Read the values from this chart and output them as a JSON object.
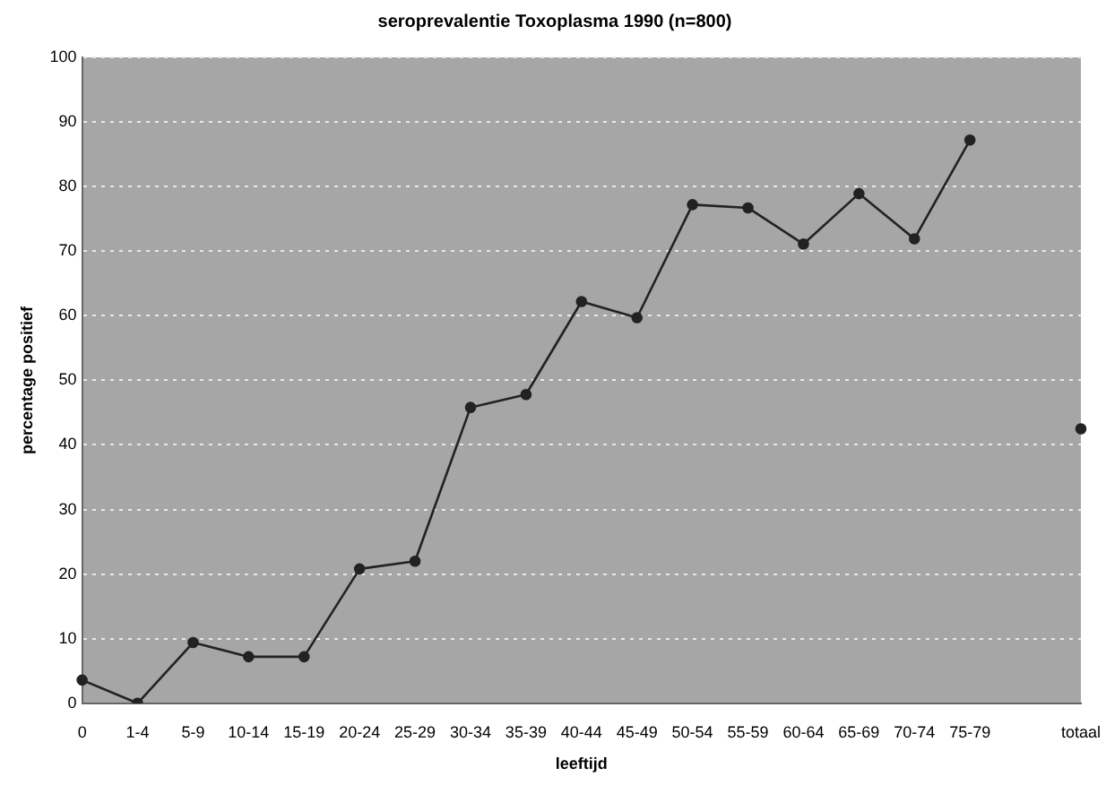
{
  "chart_data": {
    "type": "line",
    "title": "seroprevalentie Toxoplasma 1990 (n=800)",
    "xlabel": "leeftijd",
    "ylabel": "percentage positief",
    "categories": [
      "0",
      "1-4",
      "5-9",
      "10-14",
      "15-19",
      "20-24",
      "25-29",
      "30-34",
      "35-39",
      "40-44",
      "45-49",
      "50-54",
      "55-59",
      "60-64",
      "65-69",
      "70-74",
      "75-79",
      null,
      "totaal"
    ],
    "series": [
      {
        "color": "#222222",
        "values": [
          3.6,
          0,
          9.4,
          7.2,
          7.2,
          20.8,
          22,
          45.8,
          47.8,
          62.2,
          59.7,
          77.2,
          76.7,
          71.1,
          78.9,
          71.9,
          87.2,
          null,
          42.5
        ]
      }
    ],
    "ylim": [
      0,
      100
    ],
    "yticks": [
      0,
      10,
      20,
      30,
      40,
      50,
      60,
      70,
      80,
      90,
      100
    ],
    "grid": "y",
    "marker": "circle",
    "line_style": "solid",
    "legend": false
  }
}
